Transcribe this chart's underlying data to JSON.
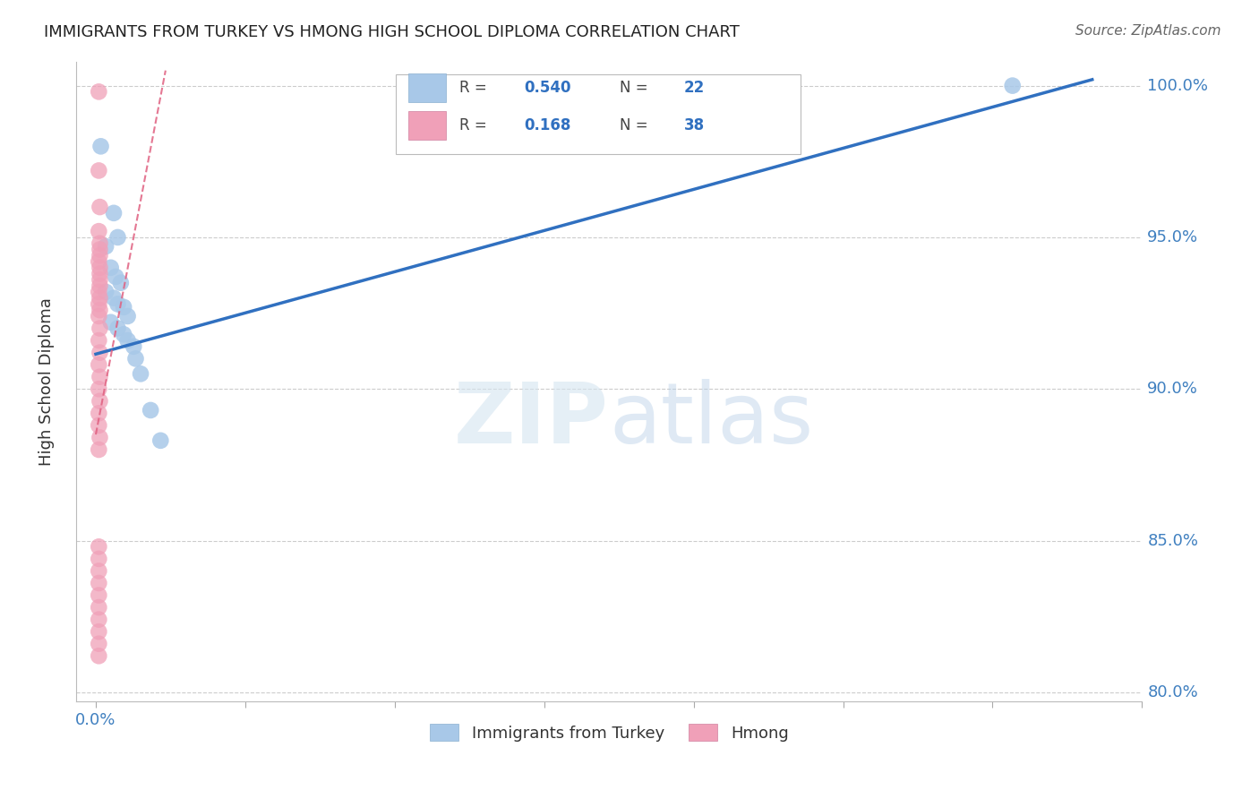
{
  "title": "IMMIGRANTS FROM TURKEY VS HMONG HIGH SCHOOL DIPLOMA CORRELATION CHART",
  "source": "Source: ZipAtlas.com",
  "ylabel": "High School Diploma",
  "watermark_zip": "ZIP",
  "watermark_atlas": "atlas",
  "turkey_R": 0.54,
  "turkey_N": 22,
  "hmong_R": 0.168,
  "hmong_N": 38,
  "turkey_color": "#a8c8e8",
  "hmong_color": "#f0a0b8",
  "turkey_line_color": "#3070c0",
  "hmong_line_color": "#e06080",
  "turkey_points": [
    [
      0.005,
      0.98
    ],
    [
      0.01,
      0.947
    ],
    [
      0.018,
      0.958
    ],
    [
      0.022,
      0.95
    ],
    [
      0.015,
      0.94
    ],
    [
      0.02,
      0.937
    ],
    [
      0.025,
      0.935
    ],
    [
      0.01,
      0.932
    ],
    [
      0.018,
      0.93
    ],
    [
      0.022,
      0.928
    ],
    [
      0.028,
      0.927
    ],
    [
      0.032,
      0.924
    ],
    [
      0.015,
      0.922
    ],
    [
      0.022,
      0.92
    ],
    [
      0.028,
      0.918
    ],
    [
      0.032,
      0.916
    ],
    [
      0.038,
      0.914
    ],
    [
      0.04,
      0.91
    ],
    [
      0.045,
      0.905
    ],
    [
      0.055,
      0.893
    ],
    [
      0.065,
      0.883
    ],
    [
      0.92,
      1.0
    ]
  ],
  "hmong_points_upper": [
    [
      0.003,
      0.998
    ],
    [
      0.003,
      0.972
    ],
    [
      0.004,
      0.96
    ],
    [
      0.003,
      0.952
    ],
    [
      0.004,
      0.948
    ],
    [
      0.004,
      0.946
    ],
    [
      0.004,
      0.944
    ],
    [
      0.003,
      0.942
    ],
    [
      0.004,
      0.94
    ],
    [
      0.004,
      0.938
    ],
    [
      0.004,
      0.936
    ],
    [
      0.004,
      0.934
    ],
    [
      0.003,
      0.932
    ],
    [
      0.004,
      0.93
    ],
    [
      0.003,
      0.928
    ],
    [
      0.004,
      0.926
    ],
    [
      0.003,
      0.924
    ],
    [
      0.004,
      0.92
    ],
    [
      0.003,
      0.916
    ],
    [
      0.004,
      0.912
    ],
    [
      0.003,
      0.908
    ],
    [
      0.004,
      0.904
    ],
    [
      0.003,
      0.9
    ],
    [
      0.004,
      0.896
    ],
    [
      0.003,
      0.892
    ],
    [
      0.003,
      0.888
    ],
    [
      0.004,
      0.884
    ],
    [
      0.003,
      0.88
    ]
  ],
  "hmong_points_lower": [
    [
      0.003,
      0.848
    ],
    [
      0.003,
      0.844
    ],
    [
      0.003,
      0.84
    ],
    [
      0.003,
      0.836
    ],
    [
      0.003,
      0.832
    ],
    [
      0.003,
      0.828
    ],
    [
      0.003,
      0.824
    ],
    [
      0.003,
      0.82
    ],
    [
      0.003,
      0.816
    ],
    [
      0.003,
      0.812
    ]
  ],
  "turkey_line": [
    [
      0.0,
      0.9115
    ],
    [
      1.0,
      1.002
    ]
  ],
  "hmong_line": [
    [
      0.0,
      0.885
    ],
    [
      0.07,
      1.005
    ]
  ],
  "xlim": [
    -0.02,
    1.05
  ],
  "ylim": [
    0.797,
    1.008
  ],
  "yticks": [
    0.8,
    0.85,
    0.9,
    0.95,
    1.0
  ],
  "ytick_labels": [
    "80.0%",
    "85.0%",
    "90.0%",
    "95.0%",
    "100.0%"
  ],
  "xtick_positions": [
    0.0,
    0.15,
    0.3,
    0.45,
    0.6,
    0.75,
    0.9,
    1.05
  ],
  "background_color": "#ffffff",
  "grid_color": "#cccccc"
}
